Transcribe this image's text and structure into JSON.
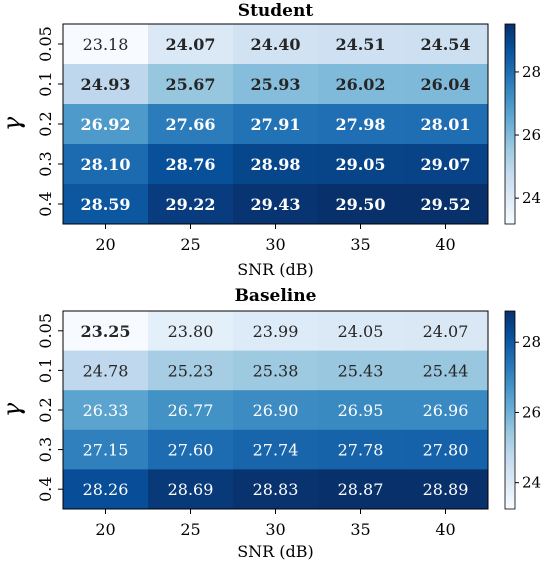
{
  "chart_data": [
    {
      "type": "heatmap",
      "title": "Student",
      "xlabel": "SNR (dB)",
      "ylabel": "γ",
      "x": [
        "20",
        "25",
        "30",
        "35",
        "40"
      ],
      "y": [
        "0.05",
        "0.1",
        "0.2",
        "0.3",
        "0.4"
      ],
      "values": [
        [
          "23.18",
          "24.07",
          "24.40",
          "24.51",
          "24.54"
        ],
        [
          "24.93",
          "25.67",
          "25.93",
          "26.02",
          "26.04"
        ],
        [
          "26.92",
          "27.66",
          "27.91",
          "27.98",
          "28.01"
        ],
        [
          "28.10",
          "28.76",
          "28.98",
          "29.05",
          "29.07"
        ],
        [
          "28.59",
          "29.22",
          "29.43",
          "29.50",
          "29.52"
        ]
      ],
      "bold": [
        [
          false,
          true,
          true,
          true,
          true
        ],
        [
          true,
          true,
          true,
          true,
          true
        ],
        [
          true,
          true,
          true,
          true,
          true
        ],
        [
          true,
          true,
          true,
          true,
          true
        ],
        [
          true,
          true,
          true,
          true,
          true
        ]
      ],
      "colorbar": {
        "ticks": [
          "24",
          "26",
          "28"
        ],
        "range": [
          23.18,
          29.52
        ]
      },
      "colormap": "Blues"
    },
    {
      "type": "heatmap",
      "title": "Baseline",
      "xlabel": "SNR (dB)",
      "ylabel": "γ",
      "x": [
        "20",
        "25",
        "30",
        "35",
        "40"
      ],
      "y": [
        "0.05",
        "0.1",
        "0.2",
        "0.3",
        "0.4"
      ],
      "values": [
        [
          "23.25",
          "23.80",
          "23.99",
          "24.05",
          "24.07"
        ],
        [
          "24.78",
          "25.23",
          "25.38",
          "25.43",
          "25.44"
        ],
        [
          "26.33",
          "26.77",
          "26.90",
          "26.95",
          "26.96"
        ],
        [
          "27.15",
          "27.60",
          "27.74",
          "27.78",
          "27.80"
        ],
        [
          "28.26",
          "28.69",
          "28.83",
          "28.87",
          "28.89"
        ]
      ],
      "bold": [
        [
          true,
          false,
          false,
          false,
          false
        ],
        [
          false,
          false,
          false,
          false,
          false
        ],
        [
          false,
          false,
          false,
          false,
          false
        ],
        [
          false,
          false,
          false,
          false,
          false
        ],
        [
          false,
          false,
          false,
          false,
          false
        ]
      ],
      "colorbar": {
        "ticks": [
          "24",
          "26",
          "28"
        ],
        "range": [
          23.25,
          28.89
        ]
      },
      "colormap": "Blues"
    }
  ]
}
